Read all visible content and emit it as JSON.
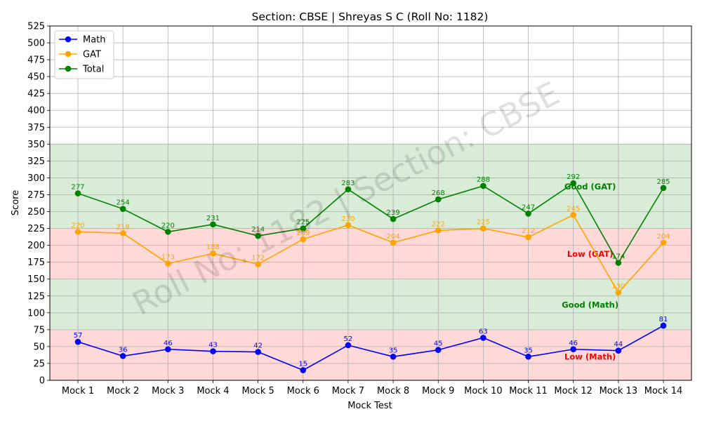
{
  "chart_data": {
    "type": "line",
    "title": "Section: CBSE | Shreyas S C (Roll No: 1182)",
    "xlabel": "Mock Test",
    "ylabel": "Score",
    "categories": [
      "Mock 1",
      "Mock 2",
      "Mock 3",
      "Mock 4",
      "Mock 5",
      "Mock 6",
      "Mock 7",
      "Mock 8",
      "Mock 9",
      "Mock 10",
      "Mock 11",
      "Mock 12",
      "Mock 13",
      "Mock 14"
    ],
    "ylim": [
      0,
      525
    ],
    "ytick_step": 25,
    "grid": true,
    "legend_position": "top-left",
    "series": [
      {
        "name": "Math",
        "color": "#0000ff",
        "values": [
          57,
          36,
          46,
          43,
          42,
          15,
          52,
          35,
          45,
          63,
          35,
          46,
          44,
          81
        ]
      },
      {
        "name": "GAT",
        "color": "#ffa500",
        "values": [
          220,
          218,
          173,
          188,
          172,
          209,
          230,
          204,
          222,
          225,
          212,
          245,
          130,
          204
        ]
      },
      {
        "name": "Total",
        "color": "#008000",
        "values": [
          277,
          254,
          220,
          231,
          214,
          225,
          283,
          239,
          268,
          288,
          247,
          292,
          174,
          285
        ]
      }
    ],
    "bands": [
      {
        "from": 0,
        "to": 75,
        "color": "#ffd8d8",
        "label": "Low (Math)",
        "label_color": "#ff0000",
        "label_y": 35
      },
      {
        "from": 75,
        "to": 150,
        "color": "#d9ecd7",
        "label": "Good (Math)",
        "label_color": "#008000",
        "label_y": 112
      },
      {
        "from": 150,
        "to": 225,
        "color": "#ffd8d8",
        "label": "Low (GAT)",
        "label_color": "#ff0000",
        "label_y": 187
      },
      {
        "from": 225,
        "to": 350,
        "color": "#d9ecd7",
        "label": "Good (GAT)",
        "label_color": "#008000",
        "label_y": 287
      }
    ],
    "watermark": "Roll No: 1182 | Section: CBSE"
  }
}
